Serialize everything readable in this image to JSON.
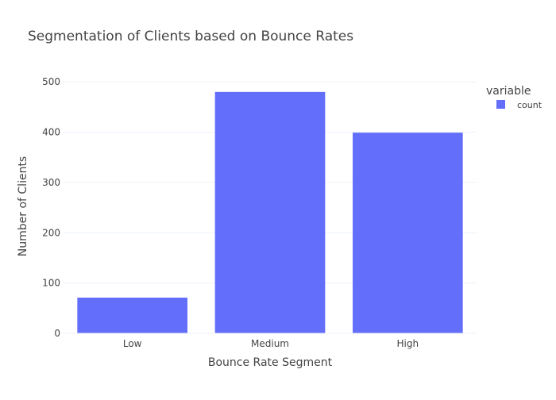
{
  "chart_data": {
    "type": "bar",
    "title": "Segmentation of Clients based on Bounce Rates",
    "xlabel": "Bounce Rate Segment",
    "ylabel": "Number of Clients",
    "categories": [
      "Low",
      "Medium",
      "High"
    ],
    "series": [
      {
        "name": "count",
        "values": [
          71,
          480,
          399
        ],
        "color": "#636efa"
      }
    ],
    "ylim": [
      0,
      505
    ],
    "yticks": [
      0,
      100,
      200,
      300,
      400,
      500
    ],
    "grid": true,
    "legend": {
      "title": "variable",
      "placement": "top-right"
    }
  }
}
